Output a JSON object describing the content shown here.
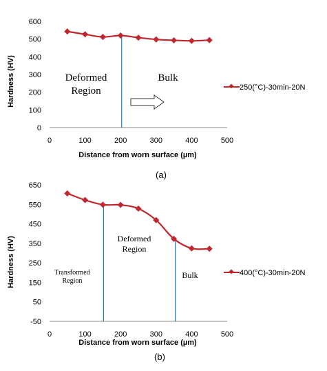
{
  "chart_data": [
    {
      "type": "line",
      "caption": "(a)",
      "xlabel": "Distance from worn surface (µm)",
      "ylabel": "Hardness (HV)",
      "xlim": [
        0,
        500
      ],
      "ylim": [
        0,
        600
      ],
      "xticks": [
        0,
        100,
        200,
        300,
        400,
        500
      ],
      "yticks": [
        0,
        100,
        200,
        300,
        400,
        500,
        600
      ],
      "series": [
        {
          "name": "250(°C)-30min-20N",
          "color": "#c0272d",
          "x": [
            50,
            100,
            150,
            200,
            250,
            300,
            350,
            400,
            450
          ],
          "y": [
            543,
            527,
            512,
            520,
            508,
            498,
            493,
            490,
            494
          ]
        }
      ],
      "annotations": [
        "Deformed",
        "Region",
        "Bulk"
      ],
      "vlines": [
        {
          "x": 203,
          "color": "#1f7bb0"
        }
      ],
      "arrow": {
        "from_x": 218,
        "to_x": 315,
        "y": 145
      },
      "legend_position": "right"
    },
    {
      "type": "line",
      "caption": "(b)",
      "xlabel": "Distance from worn surface (µm)",
      "ylabel": "Hardness (HV)",
      "xlim": [
        0,
        500
      ],
      "ylim": [
        -50,
        650
      ],
      "xticks": [
        0,
        100,
        200,
        300,
        400,
        500
      ],
      "yticks": [
        -50,
        50,
        150,
        250,
        350,
        450,
        550,
        650
      ],
      "series": [
        {
          "name": "400(°C)-30min-20N",
          "color": "#c0272d",
          "x": [
            50,
            100,
            150,
            200,
            250,
            300,
            350,
            400,
            450
          ],
          "y": [
            606,
            572,
            548,
            547,
            528,
            469,
            373,
            324,
            322
          ]
        }
      ],
      "annotations": [
        "Deformed",
        "Region",
        "Transformed",
        "Region",
        "Bulk"
      ],
      "vlines": [
        {
          "x": 152,
          "color": "#1f7bb0"
        },
        {
          "x": 354,
          "color": "#1f7bb0"
        }
      ],
      "legend_position": "right"
    }
  ]
}
